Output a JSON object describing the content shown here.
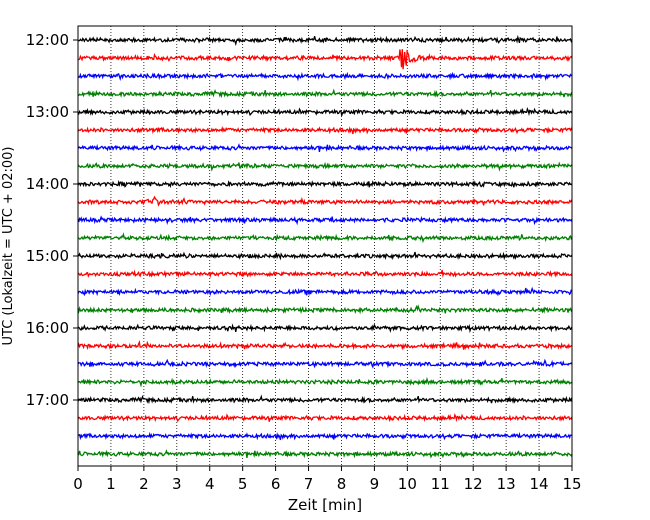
{
  "chart_data": {
    "type": "line",
    "title": "",
    "xlabel": "Zeit  [min]",
    "ylabel": "UTC (Lokalzeit = UTC + 02:00)",
    "xlim": [
      0,
      15
    ],
    "x_ticks": [
      0,
      1,
      2,
      3,
      4,
      5,
      6,
      7,
      8,
      9,
      10,
      11,
      12,
      13,
      14,
      15
    ],
    "x_tick_labels": [
      "0",
      "1",
      "2",
      "3",
      "4",
      "5",
      "6",
      "7",
      "8",
      "9",
      "10",
      "11",
      "12",
      "13",
      "14",
      "15"
    ],
    "grid": "vertical dotted",
    "row_minutes": 15,
    "y_tick_labels": [
      "12:00",
      "13:00",
      "14:00",
      "15:00",
      "16:00",
      "17:00"
    ],
    "traces": [
      {
        "start": "12:00",
        "color": "#000000",
        "events": []
      },
      {
        "start": "12:15",
        "color": "#ff0000",
        "events": [
          {
            "t": 9.8,
            "amplitude": "large"
          }
        ]
      },
      {
        "start": "12:30",
        "color": "#0000ff",
        "events": []
      },
      {
        "start": "12:45",
        "color": "#008000",
        "events": []
      },
      {
        "start": "13:00",
        "color": "#000000",
        "events": []
      },
      {
        "start": "13:15",
        "color": "#ff0000",
        "events": []
      },
      {
        "start": "13:30",
        "color": "#0000ff",
        "events": []
      },
      {
        "start": "13:45",
        "color": "#008000",
        "events": []
      },
      {
        "start": "14:00",
        "color": "#000000",
        "events": []
      },
      {
        "start": "14:15",
        "color": "#ff0000",
        "events": [
          {
            "t": 2.3,
            "amplitude": "small"
          }
        ]
      },
      {
        "start": "14:30",
        "color": "#0000ff",
        "events": []
      },
      {
        "start": "14:45",
        "color": "#008000",
        "events": []
      },
      {
        "start": "15:00",
        "color": "#000000",
        "events": []
      },
      {
        "start": "15:15",
        "color": "#ff0000",
        "events": []
      },
      {
        "start": "15:30",
        "color": "#0000ff",
        "events": []
      },
      {
        "start": "15:45",
        "color": "#008000",
        "events": []
      },
      {
        "start": "16:00",
        "color": "#000000",
        "events": []
      },
      {
        "start": "16:15",
        "color": "#ff0000",
        "events": []
      },
      {
        "start": "16:30",
        "color": "#0000ff",
        "events": []
      },
      {
        "start": "16:45",
        "color": "#008000",
        "events": []
      },
      {
        "start": "17:00",
        "color": "#000000",
        "events": []
      },
      {
        "start": "17:15",
        "color": "#ff0000",
        "events": []
      },
      {
        "start": "17:30",
        "color": "#0000ff",
        "events": []
      },
      {
        "start": "17:45",
        "color": "#008000",
        "events": []
      }
    ]
  }
}
